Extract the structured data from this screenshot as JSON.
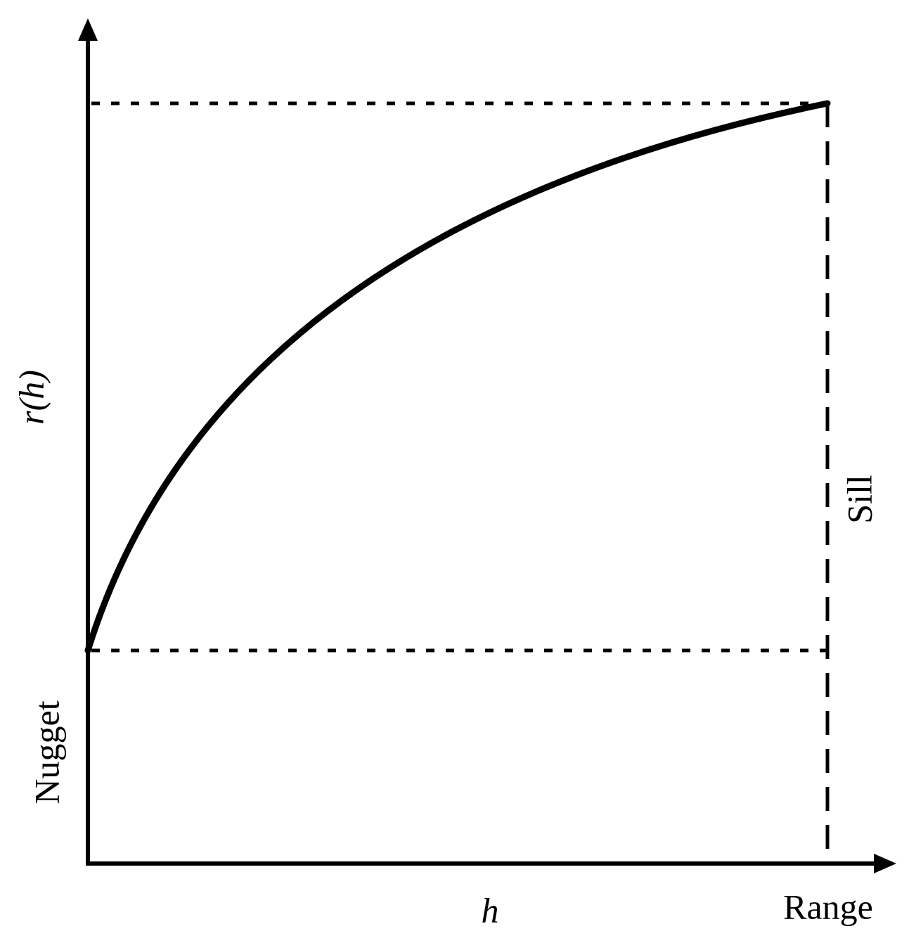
{
  "y_axis_label": "r(h)",
  "x_axis_label": "h",
  "nugget_label": "Nugget",
  "sill_label": "Sill",
  "range_label": "Range"
}
